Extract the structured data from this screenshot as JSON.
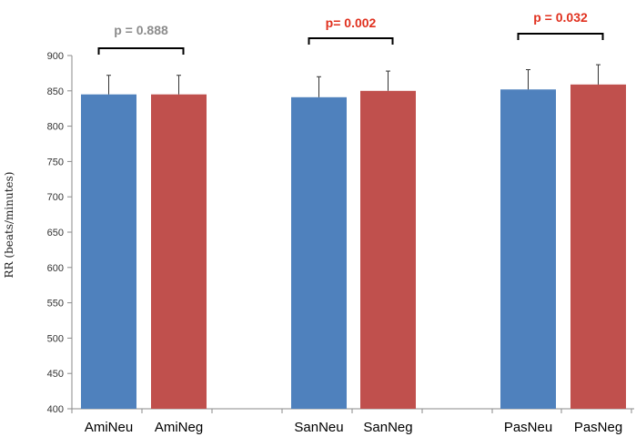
{
  "chart_data": {
    "type": "bar",
    "title": "",
    "xlabel": "",
    "ylabel": "RR (beats/minutes)",
    "ylim": [
      400,
      900
    ],
    "yticks": [
      "400",
      "450",
      "500",
      "550",
      "600",
      "650",
      "700",
      "750",
      "800",
      "850",
      "900"
    ],
    "categories": [
      "AmiNeu",
      "AmiNeg",
      "SanNeu",
      "SanNeg",
      "PasNeu",
      "PasNeg"
    ],
    "values": [
      845,
      845,
      841,
      850,
      852,
      859
    ],
    "errors": [
      27,
      27,
      29,
      28,
      28,
      28
    ],
    "colors": [
      "#4f81bd",
      "#c0504d",
      "#4f81bd",
      "#c0504d",
      "#4f81bd",
      "#c0504d"
    ],
    "grid": false,
    "annotations": [
      {
        "text": "p = 0.888",
        "pair": [
          0,
          1
        ],
        "color": "#8c8c8c"
      },
      {
        "text": "p= 0.002",
        "pair": [
          2,
          3
        ],
        "color": "#e0301e"
      },
      {
        "text": "p = 0.032",
        "pair": [
          4,
          5
        ],
        "color": "#e0301e"
      }
    ]
  }
}
